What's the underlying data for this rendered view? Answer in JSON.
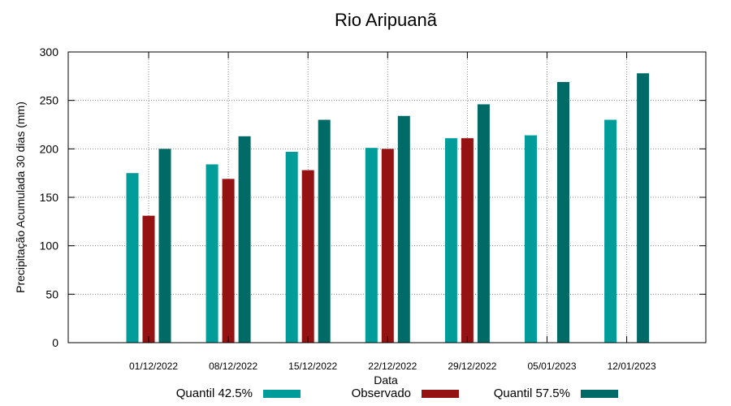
{
  "chart_data": {
    "type": "bar",
    "title": "Rio Aripuanã",
    "xlabel": "Data",
    "ylabel": "Precipitação Acumulada 30 dias (mm)",
    "ylim": [
      0,
      300
    ],
    "yticks": [
      0,
      50,
      100,
      150,
      200,
      250,
      300
    ],
    "grid": true,
    "legend_position": "bottom",
    "categories": [
      "01/12/2022",
      "08/12/2022",
      "15/12/2022",
      "22/12/2022",
      "29/12/2022",
      "05/01/2023",
      "12/01/2023"
    ],
    "series": [
      {
        "name": "Quantil 42.5%",
        "color": "#009c9a",
        "values": [
          175,
          184,
          197,
          201,
          211,
          214,
          230
        ]
      },
      {
        "name": "Observado",
        "color": "#941212",
        "values": [
          131,
          169,
          178,
          200,
          211,
          null,
          null
        ]
      },
      {
        "name": "Quantil 57.5%",
        "color": "#006a66",
        "values": [
          200,
          213,
          230,
          234,
          246,
          269,
          278
        ]
      }
    ]
  }
}
